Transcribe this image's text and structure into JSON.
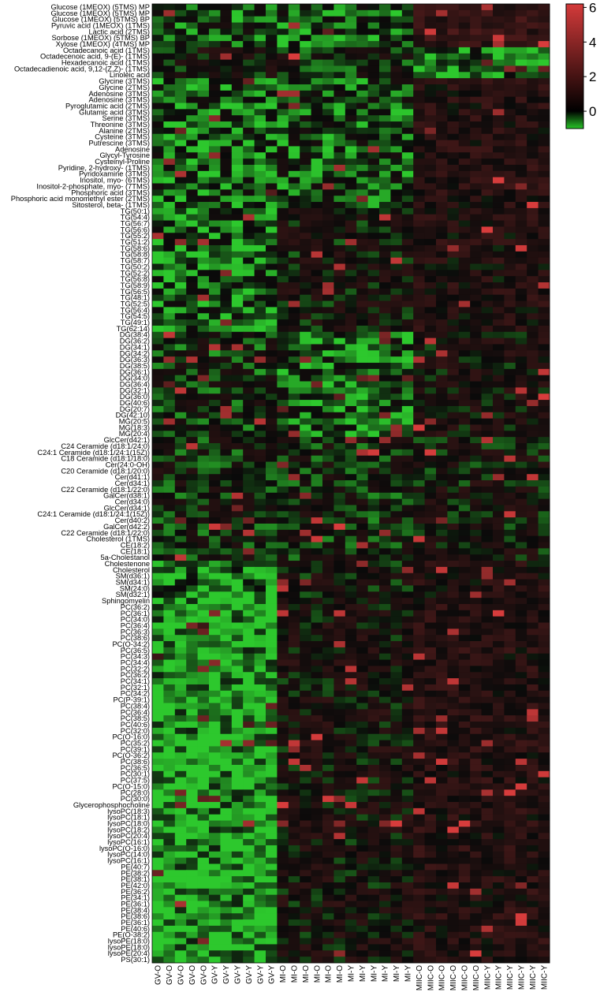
{
  "chart_data": {
    "type": "heatmap",
    "rows": [
      "Glucose (1MEOX) (5TMS) MP",
      "Glucose (1MEOX) (5TMS) MP",
      "Glucose (1MEOX) (5TMS) BP",
      "Pyruvic acid (1MEOX) (1TMS)",
      "Lactic acid (2TMS)",
      "Sorbose (1MEOX) (5TMS) BP",
      "Xylose (1MEOX) (4TMS) MP",
      "Octadecanoic acid (1TMS)",
      "Octadecenoic acid, 9-(E)- (1TMS)",
      "Hexadecanoic acid (1TMS)",
      "Octadecadienoic acid, 9,12-(Z,Z)- (1TMS)",
      "Linoleic acid",
      "Glycine (3TMS)",
      "Glycine (2TMS)",
      "Adenosine (3TMS)",
      "Adenosine (3TMS)",
      "Pyroglutamic acid (2TMS)",
      "Glutamic acid (3TMS)",
      "Serine (3TMS)",
      "Threonine (3TMS)",
      "Alanine (2TMS)",
      "Cysteine (3TMS)",
      "Putrescine (3TMS)",
      "Adenosine",
      "Glycyl-Tyrosine",
      "Cysteinyl-Proline",
      "Pyridine, 2-hydroxy- (1TMS)",
      "Pyridoxamine (3TMS)",
      "Inositol, myo- (6TMS)",
      "Inositol-2-phosphate, myo- (7TMS)",
      "Phosphoric acid (3TMS)",
      "Phosphoric acid monomethyl ester (2TMS)",
      "Sitosterol, beta- (1TMS)",
      "TG(50:1)",
      "TG(54:4)",
      "TG(56:7)",
      "TG(56:6)",
      "TG(55:2)",
      "TG(51:2)",
      "TG(58:6)",
      "TG(58:8)",
      "TG(58:7)",
      "TG(50:2)",
      "TG(52:2)",
      "TG(56:8)",
      "TG(58:9)",
      "TG(56:5)",
      "TG(48:1)",
      "TG(52:5)",
      "TG(56:4)",
      "TG(54:5)",
      "TG(49:1)",
      "TG(62:14)",
      "DG(38:4)",
      "DG(36:2)",
      "DG(34:1)",
      "DG(34:2)",
      "DG(36:3)",
      "DG(38:5)",
      "DG(36:1)",
      "DG(34:0)",
      "DG(36:4)",
      "DG(32:1)",
      "DG(36:0)",
      "DG(40:6)",
      "DG(20:7)",
      "DG(42:10)",
      "MG(20:5)",
      "MG(18:3)",
      "MG(20:4)",
      "GlcCer(d42:1)",
      "C24 Ceramide (d18:1/24:0)",
      "C24:1 Ceramide (d18:1/24:1(15Z))",
      "C18 Ceramide (d18:1/18:0)",
      "Cer(24:0-OH)",
      "C20 Ceramide (d18:1/20:0)",
      "Cer(d41:1)",
      "Cer(d34:1)",
      "C22 Ceramide (d18:1/22:0)",
      "GalCer(d38:1)",
      "Cer(d34:0)",
      "GlcCer(d34:1)",
      "C24:1 Ceramide (d18:1/24:1(15Z))",
      "Cer(d40:2)",
      "GalCer(d42:2)",
      "C22 Ceramide (d18:1/22:0)",
      "Cholesterol (1TMS)",
      "CE(18:2)",
      "CE(18:1)",
      "5a-Cholestanol",
      "Cholestenone",
      "Cholesterol",
      "SM(d36:1)",
      "SM(d34:1)",
      "SM(24:0)",
      "SM(d32:1)",
      "Sphingomyelin",
      "PC(36:2)",
      "PC(36:1)",
      "PC(34:0)",
      "PC(36:4)",
      "PC(36:3)",
      "PC(38:6)",
      "PC(O-34:2)",
      "PC(36:5)",
      "PC(34:3)",
      "PC(34:4)",
      "PC(32:2)",
      "PC(36:2)",
      "PC(34:1)",
      "PC(32:1)",
      "PC(34:2)",
      "PC(P-39:1)",
      "PC(38:4)",
      "PC(36:4)",
      "PC(38:5)",
      "PC(40:6)",
      "PC(32:0)",
      "PC(O-16:0)",
      "PC(35:2)",
      "PC(39:1)",
      "PC(O-36:2)",
      "PC(38:6)",
      "PC(36:5)",
      "PC(30:1)",
      "PC(37:5)",
      "PC(O-15:0)",
      "PC(28:0)",
      "PC(30:0)",
      "Glycerophosphocholine",
      "lysoPC(18:3)",
      "lysoPC(18:1)",
      "lysoPC(18:0)",
      "lysoPC(18:2)",
      "lysoPC(20:4)",
      "lysoPC(16:1)",
      "lysoPC(O-16:0)",
      "lysoPC(14:0)",
      "lysoPC(16:1)",
      "PE(40:7)",
      "PE(38:2)",
      "PE(38:1)",
      "PE(42:0)",
      "PE(36:2)",
      "PE(34:1)",
      "PE(36:1)",
      "PE(38:4)",
      "PE(38:6)",
      "PE(36:1)",
      "PE(40:6)",
      "PE(O-38:2)",
      "lysoPE(18:0)",
      "lysoPE(18:0)",
      "lysoPE(20:4)",
      "PS(30:1)"
    ],
    "columns": [
      "GV-O",
      "GV-O",
      "GV-O",
      "GV-O",
      "GV-O",
      "GV-Y",
      "GV-Y",
      "GV-Y",
      "GV-Y",
      "GV-Y",
      "GV-Y",
      "MI-O",
      "MI-O",
      "MI-O",
      "MI-O",
      "MI-O",
      "MI-O",
      "MI-Y",
      "MI-Y",
      "MI-Y",
      "MI-Y",
      "MI-Y",
      "MI-Y",
      "MIIC-O",
      "MIIC-O",
      "MIIC-O",
      "MIIC-O",
      "MIIC-O",
      "MIIC-O",
      "MIIC-Y",
      "MIIC-Y",
      "MIIC-Y",
      "MIIC-Y",
      "MIIC-Y",
      "MIIC-Y"
    ],
    "values_note": "",
    "colorbar": {
      "ticks": [
        "6",
        "4",
        "2",
        "0"
      ],
      "tick_values": [
        6,
        4,
        2,
        0
      ],
      "range": [
        -1,
        6.2
      ],
      "colors": {
        "low": "#27c427",
        "mid": "#000000",
        "high": "#d43a3a"
      }
    },
    "xlabel": "",
    "ylabel": ""
  }
}
